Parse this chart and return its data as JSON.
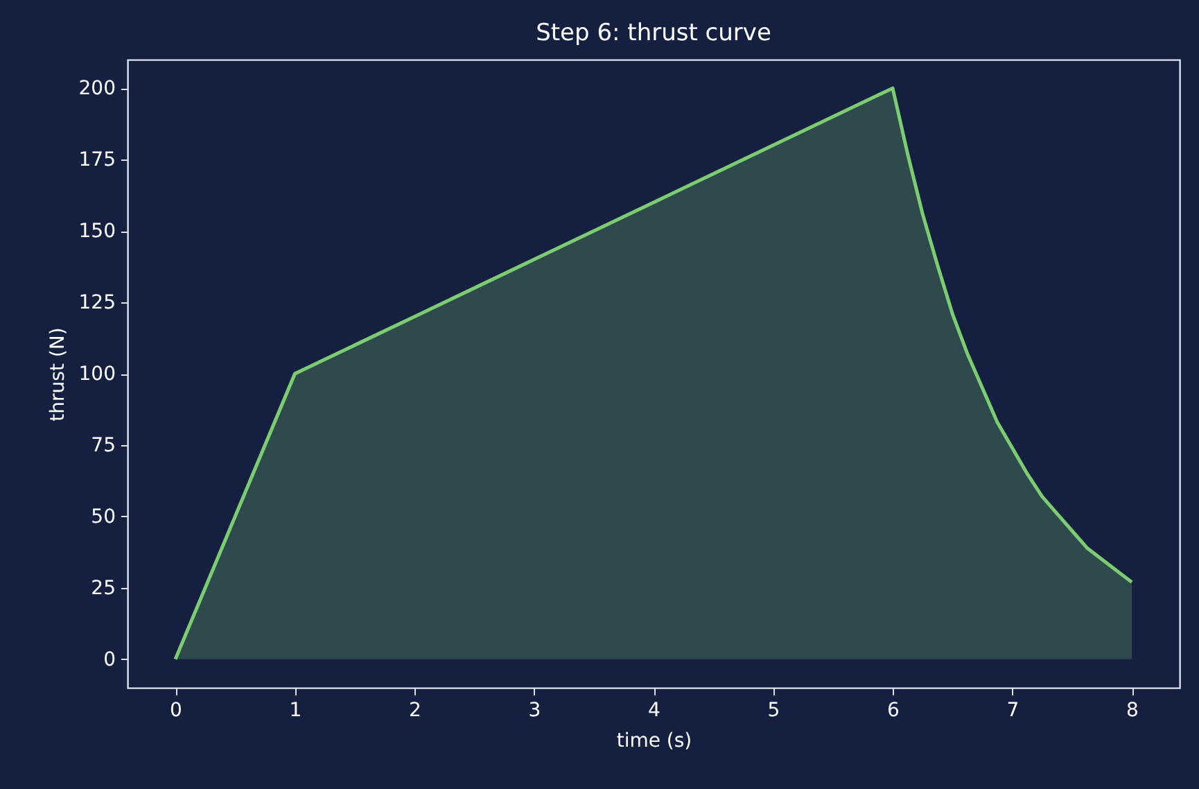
{
  "chart_data": {
    "type": "area",
    "title": "Step 6: thrust curve",
    "xlabel": "time (s)",
    "ylabel": "thrust (N)",
    "x": [
      0,
      1,
      2,
      3,
      4,
      5,
      6,
      6.125,
      6.25,
      6.375,
      6.5,
      6.625,
      6.75,
      6.875,
      7,
      7.125,
      7.25,
      7.375,
      7.5,
      7.625,
      7.75,
      7.875,
      8
    ],
    "series": [
      {
        "color": "#7ccd72",
        "values": [
          0,
          100,
          120,
          140,
          160,
          180,
          200,
          177,
          156,
          138,
          121,
          107,
          95,
          83,
          74,
          65,
          57,
          51,
          45,
          39,
          35,
          31,
          27
        ]
      }
    ],
    "xlim": [
      -0.4,
      8.4
    ],
    "xticks": [
      0,
      1,
      2,
      3,
      4,
      5,
      6,
      7,
      8
    ],
    "ylim": [
      -10,
      210
    ],
    "yticks": [
      0,
      25,
      50,
      75,
      100,
      125,
      150,
      175,
      200
    ],
    "grid": false
  }
}
